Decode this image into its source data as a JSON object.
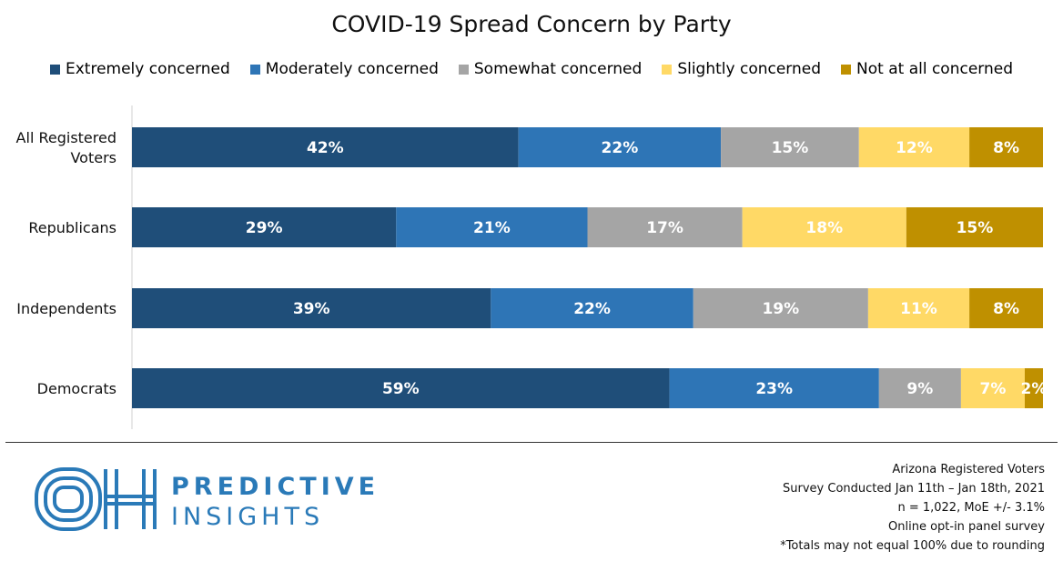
{
  "chart_data": {
    "type": "bar",
    "orientation": "horizontal-stacked",
    "title": "COVID-19 Spread Concern by Party",
    "legend_position": "top",
    "categories": [
      "All Registered Voters",
      "Republicans",
      "Independents",
      "Democrats"
    ],
    "series": [
      {
        "name": "Extremely concerned",
        "color": "#1f4e79",
        "values": [
          42,
          29,
          39,
          59
        ],
        "labels": [
          "42%",
          "29%",
          "39%",
          "59%"
        ]
      },
      {
        "name": "Moderately concerned",
        "color": "#2e75b6",
        "values": [
          22,
          21,
          22,
          23
        ],
        "labels": [
          "22%",
          "21%",
          "22%",
          "23%"
        ]
      },
      {
        "name": "Somewhat concerned",
        "color": "#a5a5a5",
        "values": [
          15,
          17,
          19,
          9
        ],
        "labels": [
          "15%",
          "17%",
          "19%",
          "9%"
        ]
      },
      {
        "name": "Slightly concerned",
        "color": "#ffd966",
        "values": [
          12,
          18,
          11,
          7
        ],
        "labels": [
          "12%",
          "18%",
          "11%",
          "7%"
        ]
      },
      {
        "name": "Not at all concerned",
        "color": "#bf9000",
        "values": [
          8,
          15,
          8,
          2
        ],
        "labels": [
          "8%",
          "15%",
          "8%",
          "2%"
        ]
      }
    ]
  },
  "logo": {
    "mark": "OH",
    "name_line1": "PREDICTIVE",
    "name_line2": "INSIGHTS"
  },
  "notes": {
    "line1": "Arizona Registered Voters",
    "line2": "Survey Conducted Jan 11th – Jan 18th, 2021",
    "line3": "n = 1,022, MoE +/- 3.1%",
    "line4": "Online opt-in panel survey",
    "line5": "*Totals may not equal 100% due to rounding"
  }
}
